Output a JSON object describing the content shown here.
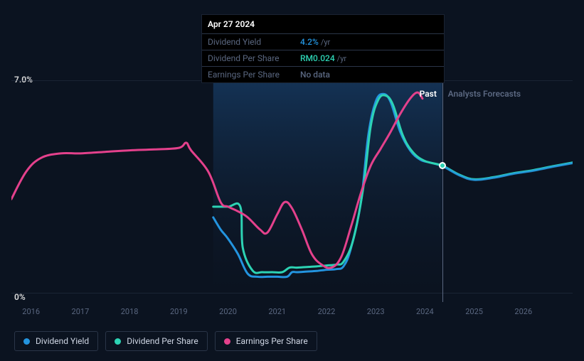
{
  "tooltip": {
    "date": "Apr 27 2024",
    "rows": [
      {
        "label": "Dividend Yield",
        "value": "4.2%",
        "suffix": "/yr",
        "value_color": "#2394df"
      },
      {
        "label": "Dividend Per Share",
        "value": "RM0.024",
        "suffix": "/yr",
        "value_color": "#2dd3b4"
      },
      {
        "label": "Earnings Per Share",
        "value": "No data",
        "suffix": "",
        "value_color": "#5a6780"
      }
    ]
  },
  "chart": {
    "type": "line",
    "background_color": "#0b1320",
    "grid_color": "#2a3548",
    "ymin": 0,
    "ymax": 7.0,
    "ylabel_max": "7.0%",
    "ylabel_min": "0%",
    "x_years": [
      2016,
      2017,
      2018,
      2019,
      2020,
      2021,
      2022,
      2023,
      2024,
      2025,
      2026
    ],
    "x_range_min": 2015.6,
    "x_range_max": 2027.0,
    "past_split_year": 2024.35,
    "cursor_year": 2024.35,
    "cursor_color": "#5a6780",
    "region_past_label": "Past",
    "region_forecast_label": "Analysts Forecasts",
    "shaded_region": {
      "from": 2019.7,
      "to": 2024.35,
      "color": "#0f2036",
      "gradient_top": "#15365b",
      "gradient_bottom": "#0b1320"
    },
    "marker": {
      "year": 2024.35,
      "value": 4.2,
      "color": "#2dd3b4"
    },
    "series": [
      {
        "name": "Dividend Yield",
        "color": "#2394df",
        "stroke_width": 3,
        "points": [
          [
            2019.7,
            2.5
          ],
          [
            2019.85,
            2.1
          ],
          [
            2020.0,
            1.8
          ],
          [
            2020.2,
            1.3
          ],
          [
            2020.4,
            0.65
          ],
          [
            2020.6,
            0.55
          ],
          [
            2020.8,
            0.55
          ],
          [
            2021.0,
            0.55
          ],
          [
            2021.2,
            0.55
          ],
          [
            2021.3,
            0.7
          ],
          [
            2021.4,
            0.7
          ],
          [
            2021.6,
            0.72
          ],
          [
            2021.8,
            0.74
          ],
          [
            2022.0,
            0.78
          ],
          [
            2022.2,
            0.8
          ],
          [
            2022.35,
            0.9
          ],
          [
            2022.5,
            1.5
          ],
          [
            2022.7,
            3.0
          ],
          [
            2022.85,
            5.2
          ],
          [
            2023.0,
            6.3
          ],
          [
            2023.15,
            6.55
          ],
          [
            2023.3,
            6.3
          ],
          [
            2023.5,
            5.3
          ],
          [
            2023.7,
            4.7
          ],
          [
            2023.9,
            4.4
          ],
          [
            2024.1,
            4.3
          ],
          [
            2024.35,
            4.2
          ]
        ]
      },
      {
        "name": "Dividend Per Share",
        "color": "#2dd3b4",
        "stroke_width": 3,
        "points": [
          [
            2019.7,
            2.85
          ],
          [
            2020.0,
            2.85
          ],
          [
            2020.25,
            2.85
          ],
          [
            2020.3,
            1.5
          ],
          [
            2020.5,
            0.75
          ],
          [
            2020.7,
            0.7
          ],
          [
            2020.9,
            0.7
          ],
          [
            2021.1,
            0.7
          ],
          [
            2021.25,
            0.85
          ],
          [
            2021.4,
            0.85
          ],
          [
            2021.6,
            0.87
          ],
          [
            2021.8,
            0.89
          ],
          [
            2022.0,
            0.92
          ],
          [
            2022.2,
            0.95
          ],
          [
            2022.35,
            1.05
          ],
          [
            2022.55,
            1.8
          ],
          [
            2022.75,
            3.5
          ],
          [
            2022.9,
            5.5
          ],
          [
            2023.05,
            6.35
          ],
          [
            2023.2,
            6.5
          ],
          [
            2023.35,
            6.2
          ],
          [
            2023.55,
            5.2
          ],
          [
            2023.75,
            4.65
          ],
          [
            2024.0,
            4.35
          ],
          [
            2024.35,
            4.2
          ],
          [
            2024.7,
            3.9
          ],
          [
            2025.0,
            3.75
          ],
          [
            2025.4,
            3.82
          ],
          [
            2025.8,
            3.95
          ],
          [
            2026.2,
            4.05
          ],
          [
            2026.6,
            4.18
          ],
          [
            2027.0,
            4.3
          ]
        ]
      },
      {
        "name": "Dividend Yield Forecast",
        "color": "#2394df",
        "stroke_width": 3,
        "opacity": 0.85,
        "points": [
          [
            2024.35,
            4.2
          ],
          [
            2024.7,
            3.88
          ],
          [
            2025.0,
            3.73
          ],
          [
            2025.4,
            3.8
          ],
          [
            2025.8,
            3.93
          ],
          [
            2026.2,
            4.03
          ],
          [
            2026.6,
            4.16
          ],
          [
            2027.0,
            4.28
          ]
        ]
      },
      {
        "name": "Earnings Per Share",
        "color": "#e4418c",
        "stroke_width": 3,
        "points": [
          [
            2015.6,
            3.1
          ],
          [
            2015.9,
            4.0
          ],
          [
            2016.2,
            4.45
          ],
          [
            2016.6,
            4.6
          ],
          [
            2017.0,
            4.6
          ],
          [
            2017.5,
            4.65
          ],
          [
            2018.0,
            4.7
          ],
          [
            2018.5,
            4.73
          ],
          [
            2019.0,
            4.78
          ],
          [
            2019.15,
            4.95
          ],
          [
            2019.25,
            4.7
          ],
          [
            2019.6,
            4.0
          ],
          [
            2019.85,
            3.0
          ],
          [
            2020.0,
            2.85
          ],
          [
            2020.2,
            2.7
          ],
          [
            2020.4,
            2.5
          ],
          [
            2020.65,
            2.1
          ],
          [
            2020.8,
            2.0
          ],
          [
            2021.0,
            2.6
          ],
          [
            2021.15,
            3.0
          ],
          [
            2021.3,
            2.8
          ],
          [
            2021.5,
            2.1
          ],
          [
            2021.7,
            1.3
          ],
          [
            2021.9,
            0.95
          ],
          [
            2022.1,
            0.85
          ],
          [
            2022.3,
            1.2
          ],
          [
            2022.5,
            2.2
          ],
          [
            2022.7,
            3.3
          ],
          [
            2022.9,
            4.2
          ],
          [
            2023.1,
            4.75
          ],
          [
            2023.3,
            5.3
          ],
          [
            2023.5,
            5.9
          ],
          [
            2023.7,
            6.4
          ],
          [
            2023.85,
            6.6
          ],
          [
            2023.95,
            6.4
          ]
        ]
      }
    ]
  },
  "legend": {
    "items": [
      {
        "label": "Dividend Yield",
        "color": "#2394df"
      },
      {
        "label": "Dividend Per Share",
        "color": "#2dd3b4"
      },
      {
        "label": "Earnings Per Share",
        "color": "#e4418c"
      }
    ]
  }
}
